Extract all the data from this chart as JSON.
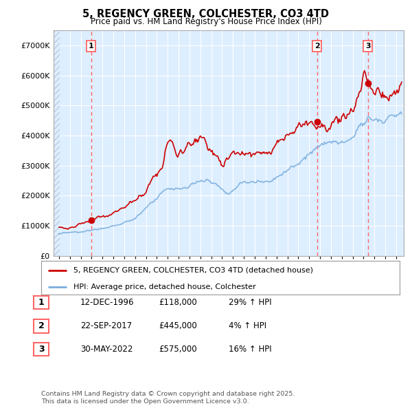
{
  "title": "5, REGENCY GREEN, COLCHESTER, CO3 4TD",
  "subtitle": "Price paid vs. HM Land Registry's House Price Index (HPI)",
  "hpi_label": "HPI: Average price, detached house, Colchester",
  "price_label": "5, REGENCY GREEN, COLCHESTER, CO3 4TD (detached house)",
  "footer1": "Contains HM Land Registry data © Crown copyright and database right 2025.",
  "footer2": "This data is licensed under the Open Government Licence v3.0.",
  "sale_points": [
    {
      "label": "1",
      "date": "12-DEC-1996",
      "price": 118000,
      "hpi_pct": "29% ↑ HPI",
      "x_year": 1996.95
    },
    {
      "label": "2",
      "date": "22-SEP-2017",
      "price": 445000,
      "hpi_pct": "4% ↑ HPI",
      "x_year": 2017.72
    },
    {
      "label": "3",
      "date": "30-MAY-2022",
      "price": 575000,
      "hpi_pct": "16% ↑ HPI",
      "x_year": 2022.41
    }
  ],
  "ylim": [
    0,
    750000
  ],
  "yticks": [
    0,
    100000,
    200000,
    300000,
    400000,
    500000,
    600000,
    700000
  ],
  "xlim_start": 1993.5,
  "xlim_end": 2025.7,
  "price_color": "#cc0000",
  "hpi_color": "#7aaedd",
  "plot_bg_color": "#ddeeff",
  "vline_color": "#ff6666",
  "grid_color": "#ffffff",
  "bg_color": "#ffffff",
  "hatch_color": "#bbccdd"
}
